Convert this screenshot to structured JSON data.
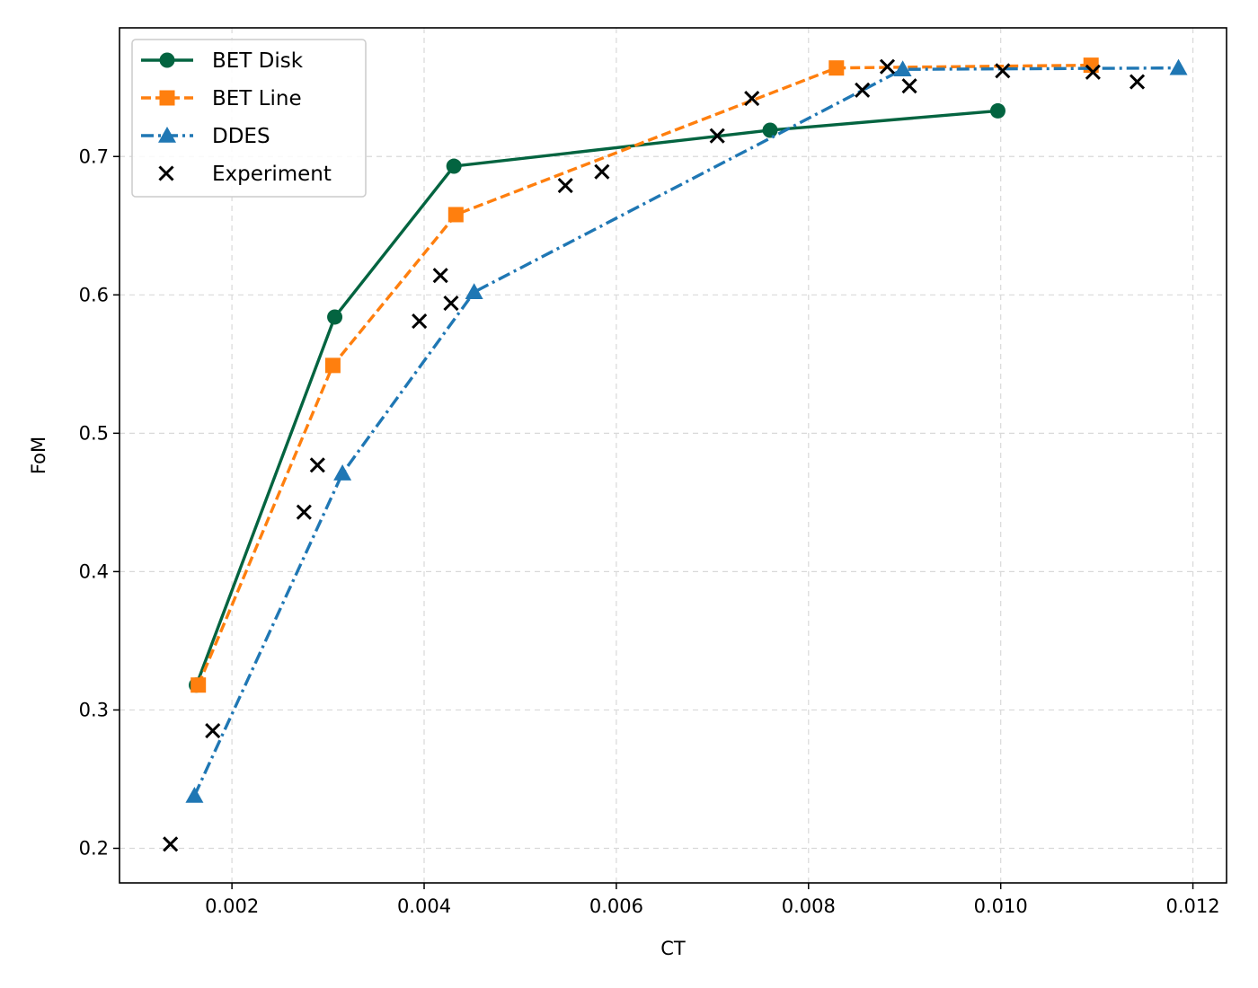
{
  "chart_data": {
    "type": "line",
    "title": "",
    "xlabel": "CT",
    "ylabel": "FoM",
    "xlim": [
      0.00083,
      0.01235
    ],
    "ylim": [
      0.175,
      0.793
    ],
    "xticks": [
      0.002,
      0.004,
      0.006,
      0.008,
      0.01,
      0.012
    ],
    "xtick_labels": [
      "0.002",
      "0.004",
      "0.006",
      "0.008",
      "0.010",
      "0.012"
    ],
    "yticks": [
      0.2,
      0.3,
      0.4,
      0.5,
      0.6,
      0.7
    ],
    "ytick_labels": [
      "0.2",
      "0.3",
      "0.4",
      "0.5",
      "0.6",
      "0.7"
    ],
    "grid": true,
    "legend_position": "top-left",
    "series": [
      {
        "name": "BET Disk",
        "style": "solid",
        "marker": "circle",
        "color": "#036440",
        "x": [
          0.00163,
          0.00307,
          0.00431,
          0.0076,
          0.00997
        ],
        "y": [
          0.318,
          0.584,
          0.693,
          0.719,
          0.733
        ]
      },
      {
        "name": "BET Line",
        "style": "dashed",
        "marker": "square",
        "color": "#ff7f0e",
        "x": [
          0.00165,
          0.00305,
          0.00433,
          0.00829,
          0.01094
        ],
        "y": [
          0.318,
          0.549,
          0.658,
          0.764,
          0.766
        ]
      },
      {
        "name": "DDES",
        "style": "dashdot",
        "marker": "triangle",
        "color": "#1f77b4",
        "x": [
          0.00161,
          0.00315,
          0.00452,
          0.00898,
          0.01185
        ],
        "y": [
          0.238,
          0.471,
          0.602,
          0.763,
          0.764
        ]
      },
      {
        "name": "Experiment",
        "style": "none",
        "marker": "x",
        "color": "#000000",
        "x": [
          0.00136,
          0.0018,
          0.00275,
          0.00289,
          0.00395,
          0.00417,
          0.00428,
          0.00547,
          0.00585,
          0.00705,
          0.00741,
          0.00856,
          0.00882,
          0.00905,
          0.01002,
          0.01096,
          0.01142
        ],
        "y": [
          0.203,
          0.285,
          0.443,
          0.477,
          0.581,
          0.614,
          0.594,
          0.679,
          0.689,
          0.715,
          0.742,
          0.748,
          0.765,
          0.751,
          0.762,
          0.761,
          0.754
        ]
      }
    ]
  }
}
